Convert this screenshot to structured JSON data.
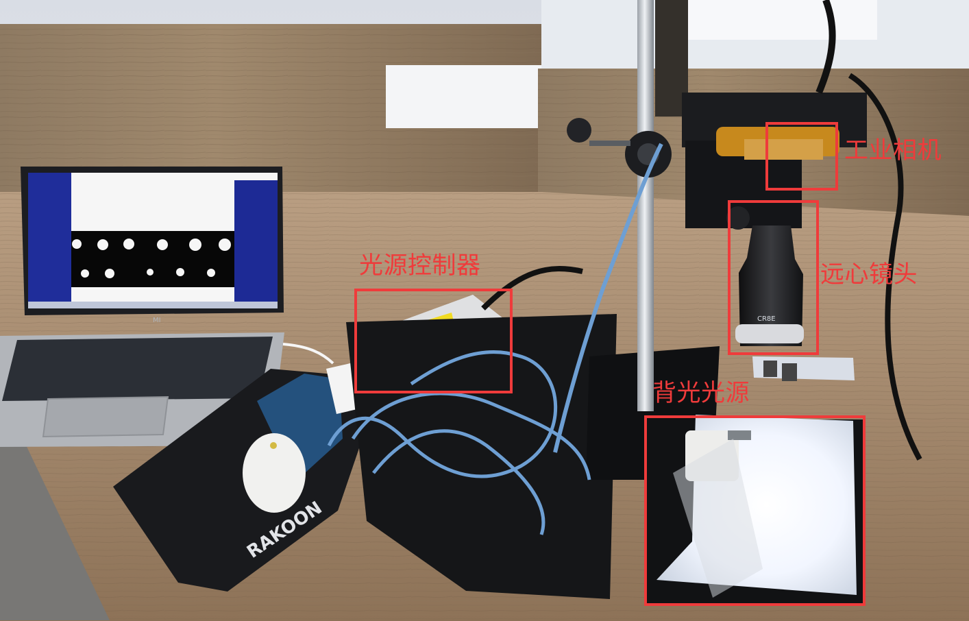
{
  "labels": {
    "industrial_camera": "工业相机",
    "telecentric_lens": "远心镜头",
    "light_controller": "光源控制器",
    "backlight": "背光光源"
  },
  "brand_text": {
    "mousepad": "RAKOON",
    "laptop_logo": "MI",
    "lens_text": "CR8E"
  },
  "colors": {
    "annotation_red": "#ef3b3b",
    "screen_blue": "#1f2d9a",
    "cable_blue": "#6e9fd3"
  }
}
